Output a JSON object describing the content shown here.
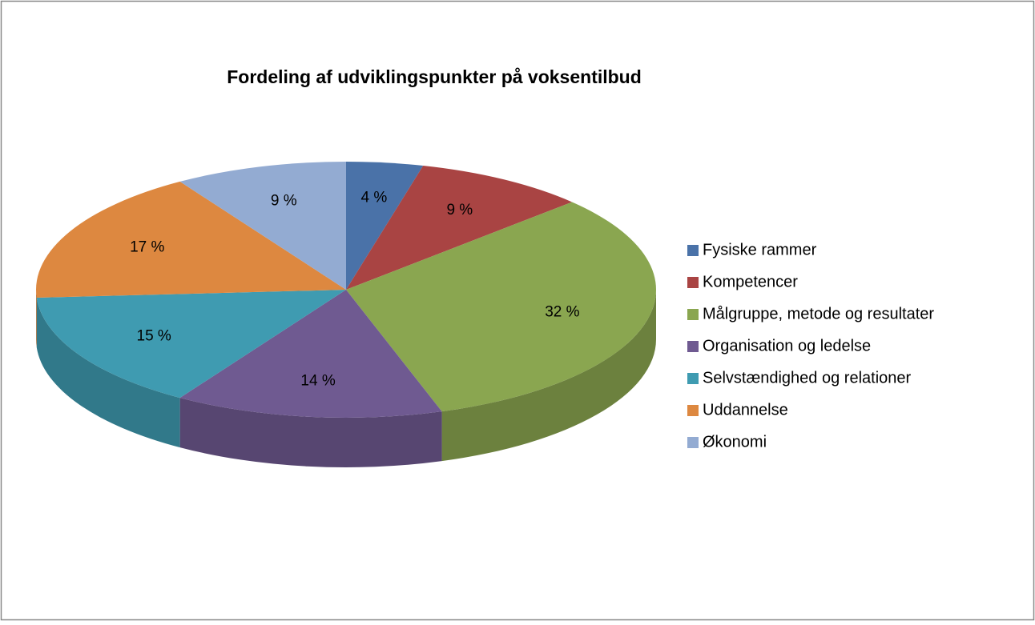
{
  "chart_data": {
    "type": "pie",
    "title": "Fordeling af udviklingspunkter på voksentilbud",
    "categories": [
      "Fysiske rammer",
      "Kompetencer",
      "Målgruppe, metode og resultater",
      "Organisation og ledelse",
      "Selvstændighed og relationer",
      "Uddannelse",
      "Økonomi"
    ],
    "values": [
      4,
      9,
      32,
      14,
      15,
      17,
      9
    ],
    "value_labels": [
      "4 %",
      "9 %",
      "32 %",
      "14 %",
      "15 %",
      "17 %",
      "9 %"
    ],
    "colors": [
      "#4a72a8",
      "#a94443",
      "#8aa650",
      "#6f5a91",
      "#3f9bb1",
      "#dd8840",
      "#93abd2"
    ],
    "legend": "right"
  }
}
